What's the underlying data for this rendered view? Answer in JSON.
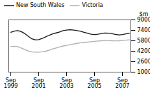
{
  "chart_data": {
    "type": "line",
    "ylabel": "$m",
    "categories": [
      "Sep\n1999",
      null,
      null,
      null,
      null,
      null,
      null,
      null,
      "Sep\n2001",
      null,
      null,
      null,
      null,
      null,
      null,
      null,
      "Sep\n2003",
      null,
      null,
      null,
      null,
      null,
      null,
      null,
      "Sep\n2005",
      null,
      null,
      null,
      null,
      null,
      null,
      null,
      "Sep\n2007",
      null,
      null
    ],
    "series": [
      {
        "name": "New South Wales",
        "color": "#1a1a1a",
        "values": [
          7100,
          7280,
          7350,
          7200,
          6900,
          6500,
          6100,
          5950,
          5980,
          6150,
          6400,
          6650,
          6850,
          7000,
          7150,
          7350,
          7450,
          7500,
          7450,
          7350,
          7250,
          7100,
          6950,
          6800,
          6750,
          6800,
          6900,
          6980,
          6950,
          6880,
          6780,
          6700,
          6750,
          6850,
          6950
        ]
      },
      {
        "name": "Victoria",
        "color": "#b0b0b0",
        "values": [
          4900,
          4950,
          4900,
          4700,
          4450,
          4250,
          4100,
          4050,
          4050,
          4100,
          4200,
          4350,
          4550,
          4700,
          4850,
          5000,
          5100,
          5200,
          5300,
          5400,
          5500,
          5560,
          5600,
          5650,
          5700,
          5750,
          5800,
          5820,
          5820,
          5800,
          5780,
          5800,
          5850,
          5900,
          5950
        ]
      }
    ],
    "ylim": [
      1000,
      9000
    ],
    "yticks": [
      1000,
      2600,
      4200,
      5800,
      7400,
      9000
    ],
    "grid": false,
    "legend": "upper left"
  }
}
